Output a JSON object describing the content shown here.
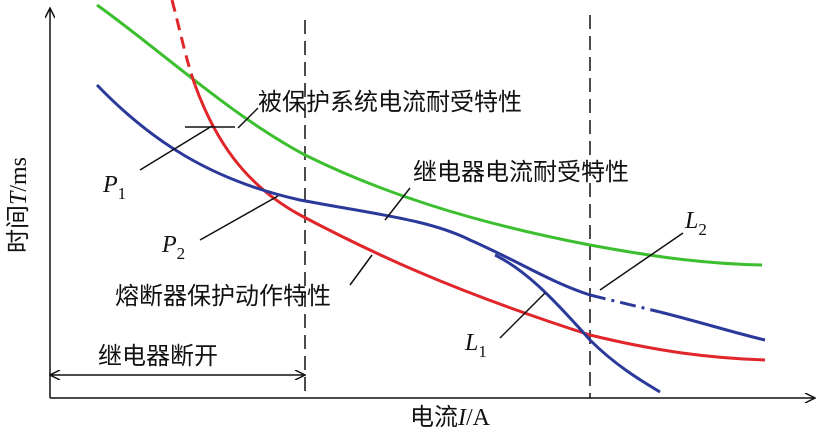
{
  "curves": {
    "protected": "被保护系统电流耐受特性",
    "relay": "继电器电流耐受特性",
    "fuse": "熔断器保护动作特性"
  },
  "relay_open": "继电器断开",
  "points": [
    {
      "letter": "P",
      "sub": "1"
    },
    {
      "letter": "P",
      "sub": "2"
    },
    {
      "letter": "L",
      "sub": "1"
    },
    {
      "letter": "L",
      "sub": "2"
    }
  ],
  "y_axis": {
    "text": "时间",
    "var": "T",
    "unit": "/ms"
  },
  "x_axis": {
    "text": "电流",
    "var": "I",
    "unit": "/A"
  }
}
